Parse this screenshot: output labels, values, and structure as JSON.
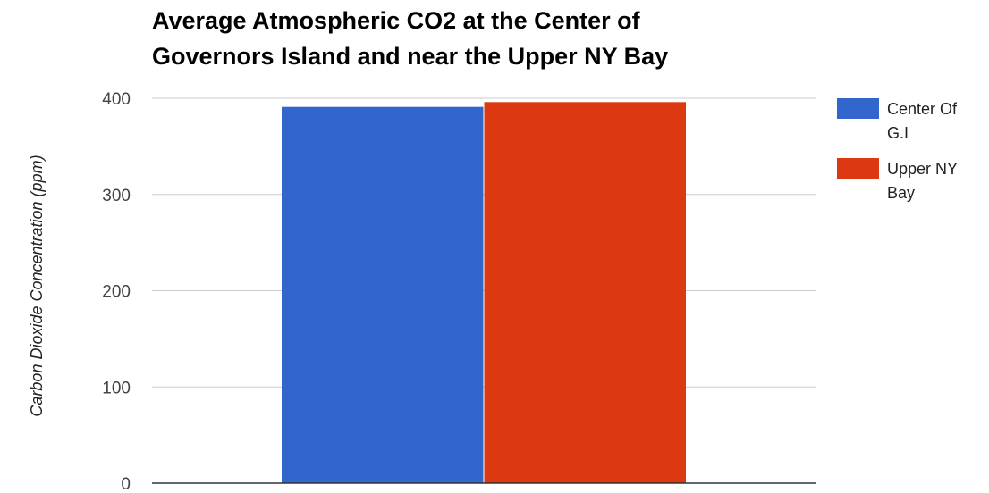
{
  "chart_data": {
    "type": "bar",
    "title_lines": [
      "Average Atmospheric CO2 at the Center of",
      "Governors Island and near the Upper NY Bay"
    ],
    "xlabel": "",
    "ylabel": "Carbon Dioxide Concentration (ppm)",
    "ylim": [
      0,
      400
    ],
    "yticks": [
      "0",
      "100",
      "200",
      "300",
      "400"
    ],
    "grid": true,
    "legend_position": "right",
    "categories": [
      ""
    ],
    "series": [
      {
        "name_lines": [
          "Center Of",
          "G.I"
        ],
        "values": [
          391
        ],
        "color": "#3366cc"
      },
      {
        "name_lines": [
          "Upper NY",
          "Bay"
        ],
        "values": [
          396
        ],
        "color": "#dc3912"
      }
    ]
  }
}
